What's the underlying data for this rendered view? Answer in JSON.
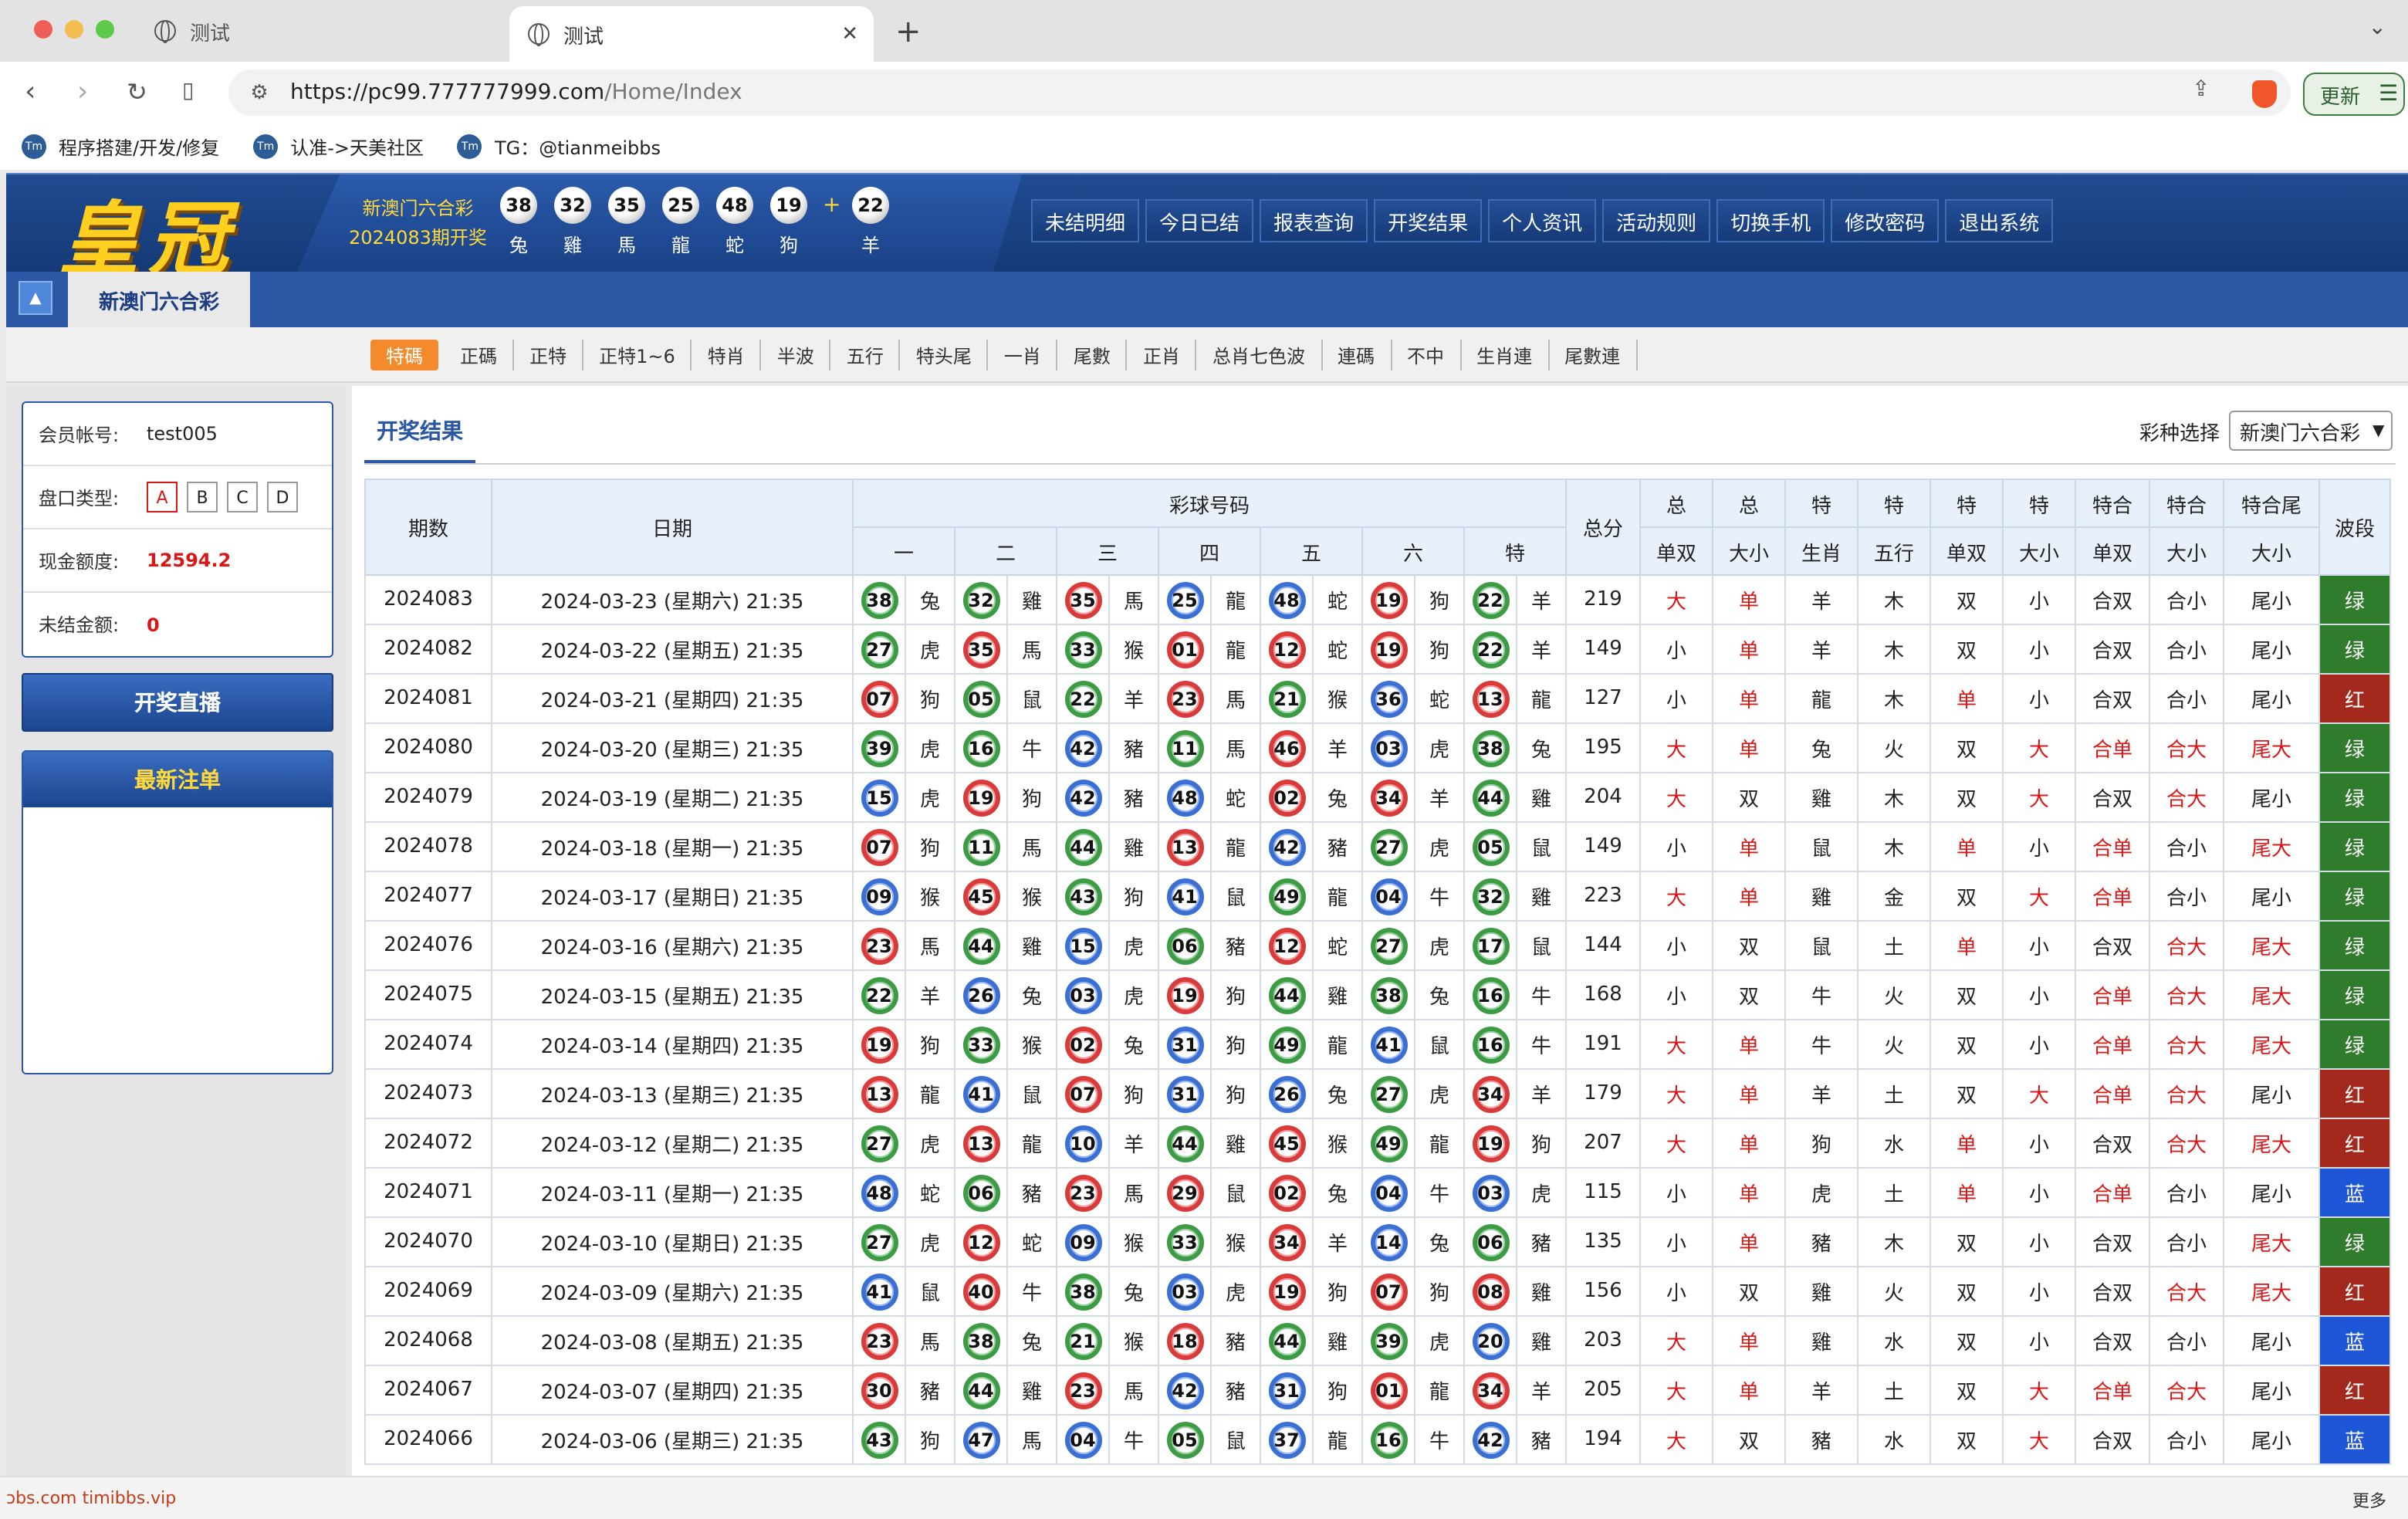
{
  "browser": {
    "tab1": "测试",
    "tab2": "测试",
    "url_host": "https://pc99.777777999.com",
    "url_path": "/Home/Index",
    "update_label": "更新",
    "bookmarks": [
      "程序搭建/开发/修复",
      "认准->天美社区",
      "TG：@tianmeibbs"
    ]
  },
  "header": {
    "logo": "皇冠",
    "lottery_name": "新澳门六合彩",
    "draw_label": "2024083期开奖",
    "balls": [
      {
        "n": "38",
        "z": "兔"
      },
      {
        "n": "32",
        "z": "雞"
      },
      {
        "n": "35",
        "z": "馬"
      },
      {
        "n": "25",
        "z": "龍"
      },
      {
        "n": "48",
        "z": "蛇"
      },
      {
        "n": "19",
        "z": "狗"
      }
    ],
    "plus": "+",
    "special": {
      "n": "22",
      "z": "羊"
    },
    "nav": [
      "未结明细",
      "今日已结",
      "报表查询",
      "开奖结果",
      "个人资讯",
      "活动规则",
      "切换手机",
      "修改密码",
      "退出系统"
    ]
  },
  "subbar": {
    "menu_icon": "▲",
    "lottery_tab": "新澳门六合彩"
  },
  "categories": [
    "特碼",
    "正碼",
    "正特",
    "正特1~6",
    "特肖",
    "半波",
    "五行",
    "特头尾",
    "一肖",
    "尾數",
    "正肖",
    "总肖七色波",
    "連碼",
    "不中",
    "生肖連",
    "尾數連"
  ],
  "account": {
    "member_label": "会员帐号:",
    "member": "test005",
    "panel_label": "盘口类型:",
    "panels": [
      "A",
      "B",
      "C",
      "D"
    ],
    "cash_label": "现金额度:",
    "cash": "12594.2",
    "unsettled_label": "未结金额:",
    "unsettled": "0"
  },
  "live_button": "开奖直播",
  "latest_orders": "最新注单",
  "results": {
    "tab": "开奖结果",
    "selector_label": "彩种选择",
    "selector_value": "新澳门六合彩",
    "headers": {
      "period": "期数",
      "date": "日期",
      "balls": "彩球号码",
      "total": "总分",
      "wave": "波段",
      "ball_cols": [
        "一",
        "二",
        "三",
        "四",
        "五",
        "六",
        "特"
      ],
      "top": [
        "总",
        "总",
        "特",
        "特",
        "特",
        "特",
        "特合",
        "特合",
        "特合尾"
      ],
      "bottom": [
        "单双",
        "大小",
        "生肖",
        "五行",
        "单双",
        "大小",
        "单双",
        "大小",
        "大小"
      ]
    },
    "rows": [
      {
        "p": "2024083",
        "d": "2024-03-23 (星期六) 21:35",
        "b": [
          [
            "38",
            "兔"
          ],
          [
            "32",
            "雞"
          ],
          [
            "35",
            "馬"
          ],
          [
            "25",
            "龍"
          ],
          [
            "48",
            "蛇"
          ],
          [
            "19",
            "狗"
          ],
          [
            "22",
            "羊"
          ]
        ],
        "t": "219",
        "s": [
          "大",
          "单",
          "羊",
          "木",
          "双",
          "小",
          "合双",
          "合小",
          "尾小"
        ],
        "w": "绿"
      },
      {
        "p": "2024082",
        "d": "2024-03-22 (星期五) 21:35",
        "b": [
          [
            "27",
            "虎"
          ],
          [
            "35",
            "馬"
          ],
          [
            "33",
            "猴"
          ],
          [
            "01",
            "龍"
          ],
          [
            "12",
            "蛇"
          ],
          [
            "19",
            "狗"
          ],
          [
            "22",
            "羊"
          ]
        ],
        "t": "149",
        "s": [
          "小",
          "单",
          "羊",
          "木",
          "双",
          "小",
          "合双",
          "合小",
          "尾小"
        ],
        "w": "绿"
      },
      {
        "p": "2024081",
        "d": "2024-03-21 (星期四) 21:35",
        "b": [
          [
            "07",
            "狗"
          ],
          [
            "05",
            "鼠"
          ],
          [
            "22",
            "羊"
          ],
          [
            "23",
            "馬"
          ],
          [
            "21",
            "猴"
          ],
          [
            "36",
            "蛇"
          ],
          [
            "13",
            "龍"
          ]
        ],
        "t": "127",
        "s": [
          "小",
          "单",
          "龍",
          "木",
          "单",
          "小",
          "合双",
          "合小",
          "尾小"
        ],
        "w": "红"
      },
      {
        "p": "2024080",
        "d": "2024-03-20 (星期三) 21:35",
        "b": [
          [
            "39",
            "虎"
          ],
          [
            "16",
            "牛"
          ],
          [
            "42",
            "豬"
          ],
          [
            "11",
            "馬"
          ],
          [
            "46",
            "羊"
          ],
          [
            "03",
            "虎"
          ],
          [
            "38",
            "兔"
          ]
        ],
        "t": "195",
        "s": [
          "大",
          "单",
          "兔",
          "火",
          "双",
          "大",
          "合单",
          "合大",
          "尾大"
        ],
        "w": "绿"
      },
      {
        "p": "2024079",
        "d": "2024-03-19 (星期二) 21:35",
        "b": [
          [
            "15",
            "虎"
          ],
          [
            "19",
            "狗"
          ],
          [
            "42",
            "豬"
          ],
          [
            "48",
            "蛇"
          ],
          [
            "02",
            "兔"
          ],
          [
            "34",
            "羊"
          ],
          [
            "44",
            "雞"
          ]
        ],
        "t": "204",
        "s": [
          "大",
          "双",
          "雞",
          "木",
          "双",
          "大",
          "合双",
          "合大",
          "尾小"
        ],
        "w": "绿"
      },
      {
        "p": "2024078",
        "d": "2024-03-18 (星期一) 21:35",
        "b": [
          [
            "07",
            "狗"
          ],
          [
            "11",
            "馬"
          ],
          [
            "44",
            "雞"
          ],
          [
            "13",
            "龍"
          ],
          [
            "42",
            "豬"
          ],
          [
            "27",
            "虎"
          ],
          [
            "05",
            "鼠"
          ]
        ],
        "t": "149",
        "s": [
          "小",
          "单",
          "鼠",
          "木",
          "单",
          "小",
          "合单",
          "合小",
          "尾大"
        ],
        "w": "绿"
      },
      {
        "p": "2024077",
        "d": "2024-03-17 (星期日) 21:35",
        "b": [
          [
            "09",
            "猴"
          ],
          [
            "45",
            "猴"
          ],
          [
            "43",
            "狗"
          ],
          [
            "41",
            "鼠"
          ],
          [
            "49",
            "龍"
          ],
          [
            "04",
            "牛"
          ],
          [
            "32",
            "雞"
          ]
        ],
        "t": "223",
        "s": [
          "大",
          "单",
          "雞",
          "金",
          "双",
          "大",
          "合单",
          "合小",
          "尾小"
        ],
        "w": "绿"
      },
      {
        "p": "2024076",
        "d": "2024-03-16 (星期六) 21:35",
        "b": [
          [
            "23",
            "馬"
          ],
          [
            "44",
            "雞"
          ],
          [
            "15",
            "虎"
          ],
          [
            "06",
            "豬"
          ],
          [
            "12",
            "蛇"
          ],
          [
            "27",
            "虎"
          ],
          [
            "17",
            "鼠"
          ]
        ],
        "t": "144",
        "s": [
          "小",
          "双",
          "鼠",
          "土",
          "单",
          "小",
          "合双",
          "合大",
          "尾大"
        ],
        "w": "绿"
      },
      {
        "p": "2024075",
        "d": "2024-03-15 (星期五) 21:35",
        "b": [
          [
            "22",
            "羊"
          ],
          [
            "26",
            "兔"
          ],
          [
            "03",
            "虎"
          ],
          [
            "19",
            "狗"
          ],
          [
            "44",
            "雞"
          ],
          [
            "38",
            "兔"
          ],
          [
            "16",
            "牛"
          ]
        ],
        "t": "168",
        "s": [
          "小",
          "双",
          "牛",
          "火",
          "双",
          "小",
          "合单",
          "合大",
          "尾大"
        ],
        "w": "绿"
      },
      {
        "p": "2024074",
        "d": "2024-03-14 (星期四) 21:35",
        "b": [
          [
            "19",
            "狗"
          ],
          [
            "33",
            "猴"
          ],
          [
            "02",
            "兔"
          ],
          [
            "31",
            "狗"
          ],
          [
            "49",
            "龍"
          ],
          [
            "41",
            "鼠"
          ],
          [
            "16",
            "牛"
          ]
        ],
        "t": "191",
        "s": [
          "大",
          "单",
          "牛",
          "火",
          "双",
          "小",
          "合单",
          "合大",
          "尾大"
        ],
        "w": "绿"
      },
      {
        "p": "2024073",
        "d": "2024-03-13 (星期三) 21:35",
        "b": [
          [
            "13",
            "龍"
          ],
          [
            "41",
            "鼠"
          ],
          [
            "07",
            "狗"
          ],
          [
            "31",
            "狗"
          ],
          [
            "26",
            "兔"
          ],
          [
            "27",
            "虎"
          ],
          [
            "34",
            "羊"
          ]
        ],
        "t": "179",
        "s": [
          "大",
          "单",
          "羊",
          "土",
          "双",
          "大",
          "合单",
          "合大",
          "尾小"
        ],
        "w": "红"
      },
      {
        "p": "2024072",
        "d": "2024-03-12 (星期二) 21:35",
        "b": [
          [
            "27",
            "虎"
          ],
          [
            "13",
            "龍"
          ],
          [
            "10",
            "羊"
          ],
          [
            "44",
            "雞"
          ],
          [
            "45",
            "猴"
          ],
          [
            "49",
            "龍"
          ],
          [
            "19",
            "狗"
          ]
        ],
        "t": "207",
        "s": [
          "大",
          "单",
          "狗",
          "水",
          "单",
          "小",
          "合双",
          "合大",
          "尾大"
        ],
        "w": "红"
      },
      {
        "p": "2024071",
        "d": "2024-03-11 (星期一) 21:35",
        "b": [
          [
            "48",
            "蛇"
          ],
          [
            "06",
            "豬"
          ],
          [
            "23",
            "馬"
          ],
          [
            "29",
            "鼠"
          ],
          [
            "02",
            "兔"
          ],
          [
            "04",
            "牛"
          ],
          [
            "03",
            "虎"
          ]
        ],
        "t": "115",
        "s": [
          "小",
          "单",
          "虎",
          "土",
          "单",
          "小",
          "合单",
          "合小",
          "尾小"
        ],
        "w": "蓝"
      },
      {
        "p": "2024070",
        "d": "2024-03-10 (星期日) 21:35",
        "b": [
          [
            "27",
            "虎"
          ],
          [
            "12",
            "蛇"
          ],
          [
            "09",
            "猴"
          ],
          [
            "33",
            "猴"
          ],
          [
            "34",
            "羊"
          ],
          [
            "14",
            "兔"
          ],
          [
            "06",
            "豬"
          ]
        ],
        "t": "135",
        "s": [
          "小",
          "单",
          "豬",
          "木",
          "双",
          "小",
          "合双",
          "合小",
          "尾大"
        ],
        "w": "绿"
      },
      {
        "p": "2024069",
        "d": "2024-03-09 (星期六) 21:35",
        "b": [
          [
            "41",
            "鼠"
          ],
          [
            "40",
            "牛"
          ],
          [
            "38",
            "兔"
          ],
          [
            "03",
            "虎"
          ],
          [
            "19",
            "狗"
          ],
          [
            "07",
            "狗"
          ],
          [
            "08",
            "雞"
          ]
        ],
        "t": "156",
        "s": [
          "小",
          "双",
          "雞",
          "火",
          "双",
          "小",
          "合双",
          "合大",
          "尾大"
        ],
        "w": "红"
      },
      {
        "p": "2024068",
        "d": "2024-03-08 (星期五) 21:35",
        "b": [
          [
            "23",
            "馬"
          ],
          [
            "38",
            "兔"
          ],
          [
            "21",
            "猴"
          ],
          [
            "18",
            "豬"
          ],
          [
            "44",
            "雞"
          ],
          [
            "39",
            "虎"
          ],
          [
            "20",
            "雞"
          ]
        ],
        "t": "203",
        "s": [
          "大",
          "单",
          "雞",
          "水",
          "双",
          "小",
          "合双",
          "合小",
          "尾小"
        ],
        "w": "蓝"
      },
      {
        "p": "2024067",
        "d": "2024-03-07 (星期四) 21:35",
        "b": [
          [
            "30",
            "豬"
          ],
          [
            "44",
            "雞"
          ],
          [
            "23",
            "馬"
          ],
          [
            "42",
            "豬"
          ],
          [
            "31",
            "狗"
          ],
          [
            "01",
            "龍"
          ],
          [
            "34",
            "羊"
          ]
        ],
        "t": "205",
        "s": [
          "大",
          "单",
          "羊",
          "土",
          "双",
          "大",
          "合单",
          "合大",
          "尾小"
        ],
        "w": "红"
      },
      {
        "p": "2024066",
        "d": "2024-03-06 (星期三) 21:35",
        "b": [
          [
            "43",
            "狗"
          ],
          [
            "47",
            "馬"
          ],
          [
            "04",
            "牛"
          ],
          [
            "05",
            "鼠"
          ],
          [
            "37",
            "龍"
          ],
          [
            "16",
            "牛"
          ],
          [
            "42",
            "豬"
          ]
        ],
        "t": "194",
        "s": [
          "大",
          "双",
          "豬",
          "水",
          "双",
          "大",
          "合双",
          "合小",
          "尾小"
        ],
        "w": "蓝"
      }
    ]
  },
  "colors": {
    "red_ball": "#d83b3b",
    "green_ball": "#3d9b45",
    "blue_ball": "#3b6fd1",
    "wave_green": "#2f7d2c",
    "wave_red": "#a3291c",
    "wave_blue": "#1f56d8",
    "brand_blue": "#2c57a4"
  },
  "footer": {
    "left": "ɔbs.com timibbs.vip",
    "right": "更多"
  }
}
